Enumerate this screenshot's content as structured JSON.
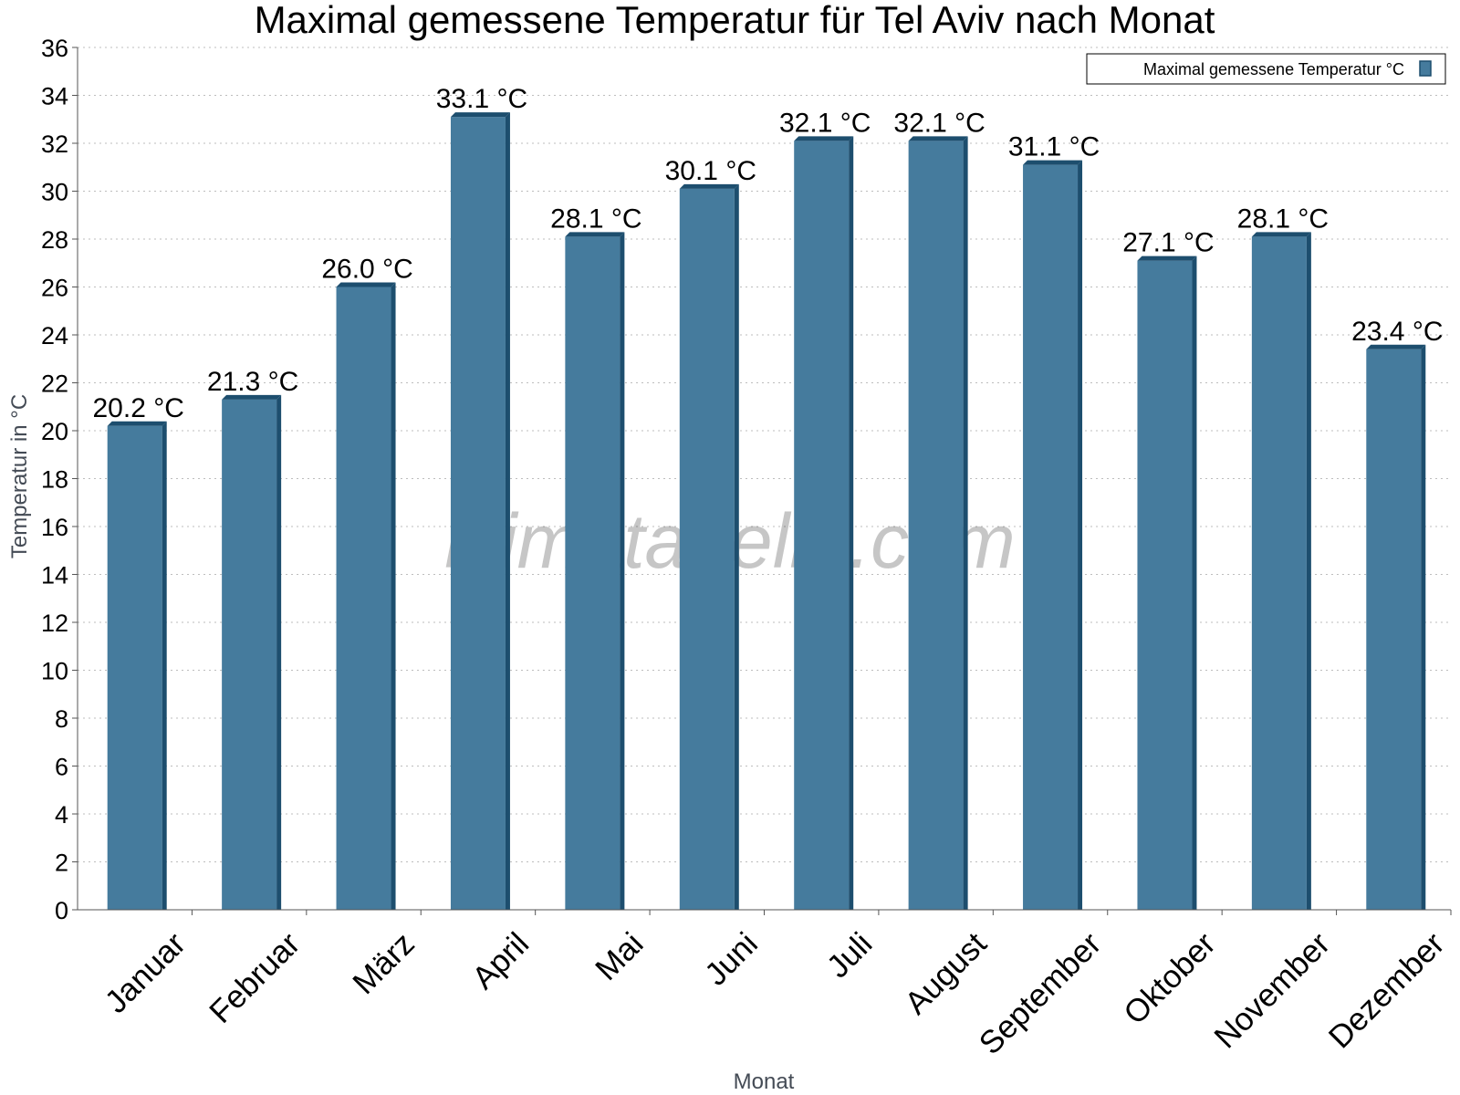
{
  "chart_data": {
    "type": "bar",
    "title": "Maximal gemessene Temperatur für Tel Aviv nach Monat",
    "xlabel": "Monat",
    "ylabel": "Temperatur in °C",
    "categories": [
      "Januar",
      "Februar",
      "März",
      "April",
      "Mai",
      "Juni",
      "Juli",
      "August",
      "September",
      "Oktober",
      "November",
      "Dezember"
    ],
    "series": [
      {
        "name": "Maximal gemessene Temperatur °C",
        "values": [
          20.2,
          21.3,
          26.0,
          33.1,
          28.1,
          30.1,
          32.1,
          32.1,
          31.1,
          27.1,
          28.1,
          23.4
        ],
        "labels": [
          "20.2 °C",
          "21.3 °C",
          "26.0 °C",
          "33.1 °C",
          "28.1 °C",
          "30.1 °C",
          "32.1 °C",
          "32.1 °C",
          "31.1 °C",
          "27.1 °C",
          "28.1 °C",
          "23.4 °C"
        ],
        "color": "#457b9d",
        "edge_color": "#1d4e6e"
      }
    ],
    "ylim": [
      0,
      36
    ],
    "ytick_step": 2,
    "grid": true,
    "legend_position": "top-right",
    "watermark": "klimatabelle.com"
  }
}
